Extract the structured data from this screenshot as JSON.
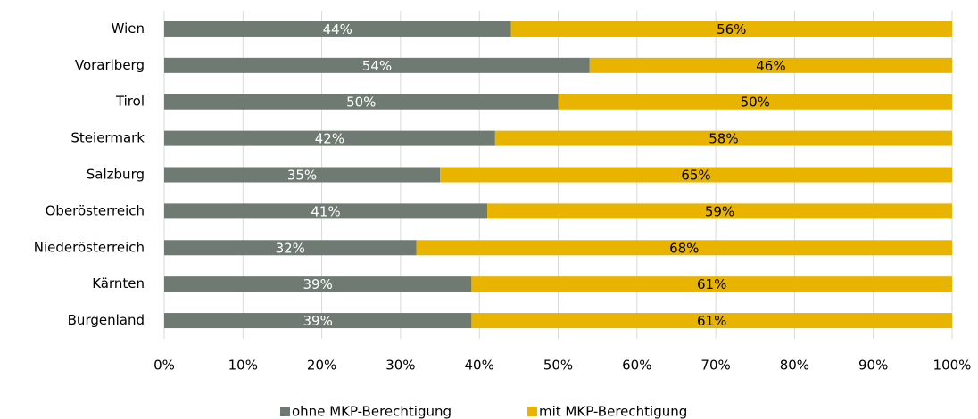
{
  "chart_data": {
    "type": "stacked_bar_horizontal",
    "categories": [
      "Wien",
      "Vorarlberg",
      "Tirol",
      "Steiermark",
      "Salzburg",
      "Oberösterreich",
      "Niederösterreich",
      "Kärnten",
      "Burgenland"
    ],
    "series": [
      {
        "name": "ohne MKP-Berechtigung",
        "color": "#6f7a72",
        "label_color": "#ffffff",
        "values": [
          44,
          54,
          50,
          42,
          35,
          41,
          32,
          39,
          39
        ],
        "value_labels": [
          "44%",
          "54%",
          "50%",
          "42%",
          "35%",
          "41%",
          "32%",
          "39%",
          "39%"
        ]
      },
      {
        "name": "mit MKP-Berechtigung",
        "color": "#e8b400",
        "label_color": "#000000",
        "values": [
          56,
          46,
          50,
          58,
          65,
          59,
          68,
          61,
          61
        ],
        "value_labels": [
          "56%",
          "46%",
          "50%",
          "58%",
          "65%",
          "59%",
          "68%",
          "61%",
          "61%"
        ]
      }
    ],
    "xlim": [
      0,
      100
    ],
    "xticks": [
      {
        "value": 0,
        "label": "0%"
      },
      {
        "value": 10,
        "label": "10%"
      },
      {
        "value": 20,
        "label": "20%"
      },
      {
        "value": 30,
        "label": "30%"
      },
      {
        "value": 40,
        "label": "40%"
      },
      {
        "value": 50,
        "label": "50%"
      },
      {
        "value": 60,
        "label": "60%"
      },
      {
        "value": 70,
        "label": "70%"
      },
      {
        "value": 80,
        "label": "80%"
      },
      {
        "value": 90,
        "label": "90%"
      },
      {
        "value": 100,
        "label": "100%"
      }
    ],
    "grid": true,
    "legend": "bottom"
  }
}
